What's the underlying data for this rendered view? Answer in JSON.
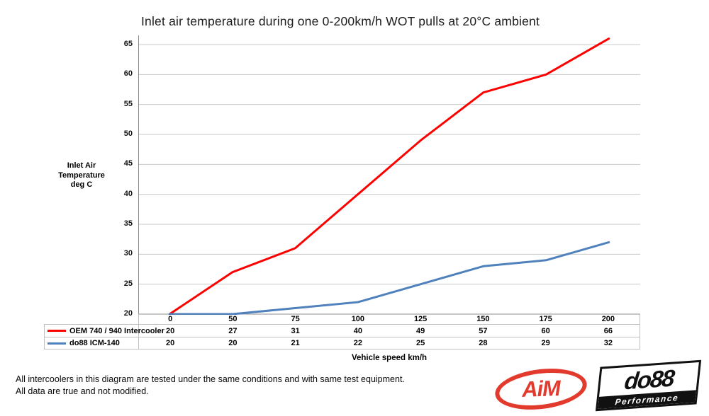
{
  "chart_data": {
    "type": "line",
    "title": "Inlet air temperature during one 0-200km/h WOT pulls at 20°C ambient",
    "categories": [
      "0",
      "50",
      "75",
      "100",
      "125",
      "150",
      "175",
      "200"
    ],
    "series": [
      {
        "name": "OEM 740 / 940 Intercooler",
        "color": "#fe0000",
        "values": [
          20,
          27,
          31,
          40,
          49,
          57,
          60,
          66
        ]
      },
      {
        "name": "do88 ICM-140",
        "color": "#4f81bd",
        "values": [
          20,
          20,
          21,
          22,
          25,
          28,
          29,
          32
        ]
      }
    ],
    "xlabel": "Vehicle speed km/h",
    "ylabel_lines": [
      "Inlet Air",
      "Temperature",
      "deg C"
    ],
    "ylim": [
      20,
      65
    ],
    "yticks": [
      20,
      25,
      30,
      35,
      40,
      45,
      50,
      55,
      60,
      65
    ],
    "grid": "horizontal",
    "legend_position": "data-table-left"
  },
  "colors": {
    "gridline": "#c8c8c8",
    "axis": "#8c8c8c",
    "table_border": "#c1c1c1",
    "series_red": "#fe0000",
    "series_blue": "#4f81bd",
    "logo_red": "#e23b2e",
    "logo_black": "#111111"
  },
  "footer": {
    "line1": "All intercoolers in this diagram are tested under the same conditions and with same test equipment.",
    "line2": "All data are true and not modified."
  },
  "logos": {
    "aim_text": "AiM",
    "do88_text": "do88",
    "do88_subtext": "Performance"
  }
}
